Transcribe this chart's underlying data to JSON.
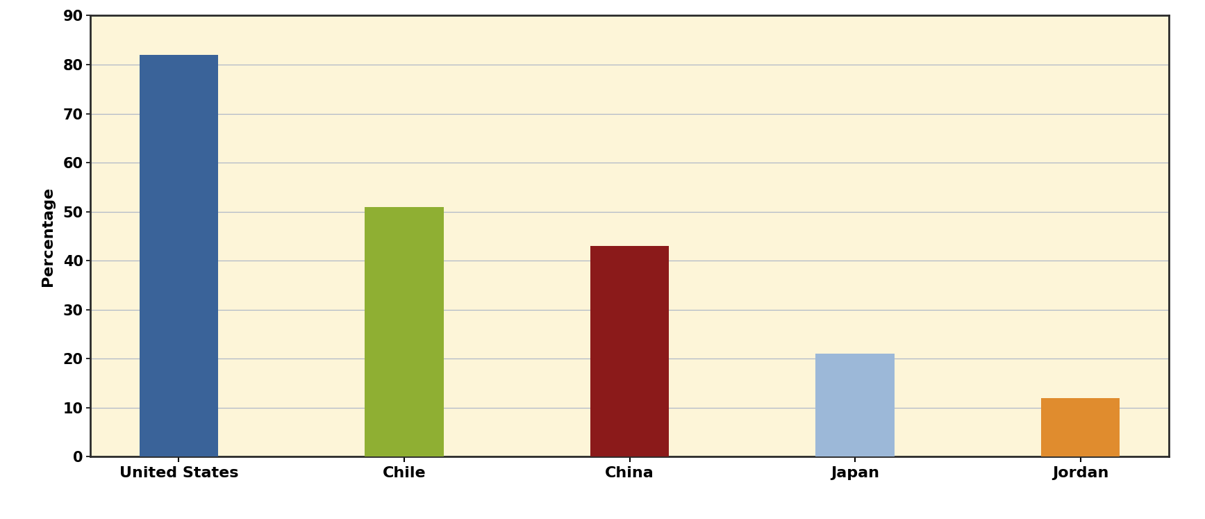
{
  "categories": [
    "United States",
    "Chile",
    "China",
    "Japan",
    "Jordan"
  ],
  "values": [
    82,
    51,
    43,
    21,
    12
  ],
  "bar_colors": [
    "#3a6399",
    "#8faf33",
    "#8b1a1a",
    "#9cb8d8",
    "#e08c2e"
  ],
  "ylabel": "Percentage",
  "ylim": [
    0,
    90
  ],
  "yticks": [
    0,
    10,
    20,
    30,
    40,
    50,
    60,
    70,
    80,
    90
  ],
  "background_color": "#fdf5d8",
  "grid_color": "#b0b8c8",
  "bar_width": 0.35,
  "figure_bg": "#ffffff",
  "spine_color": "#2a2a2a",
  "tick_label_fontsize": 16,
  "ylabel_fontsize": 16,
  "ytick_fontsize": 15
}
